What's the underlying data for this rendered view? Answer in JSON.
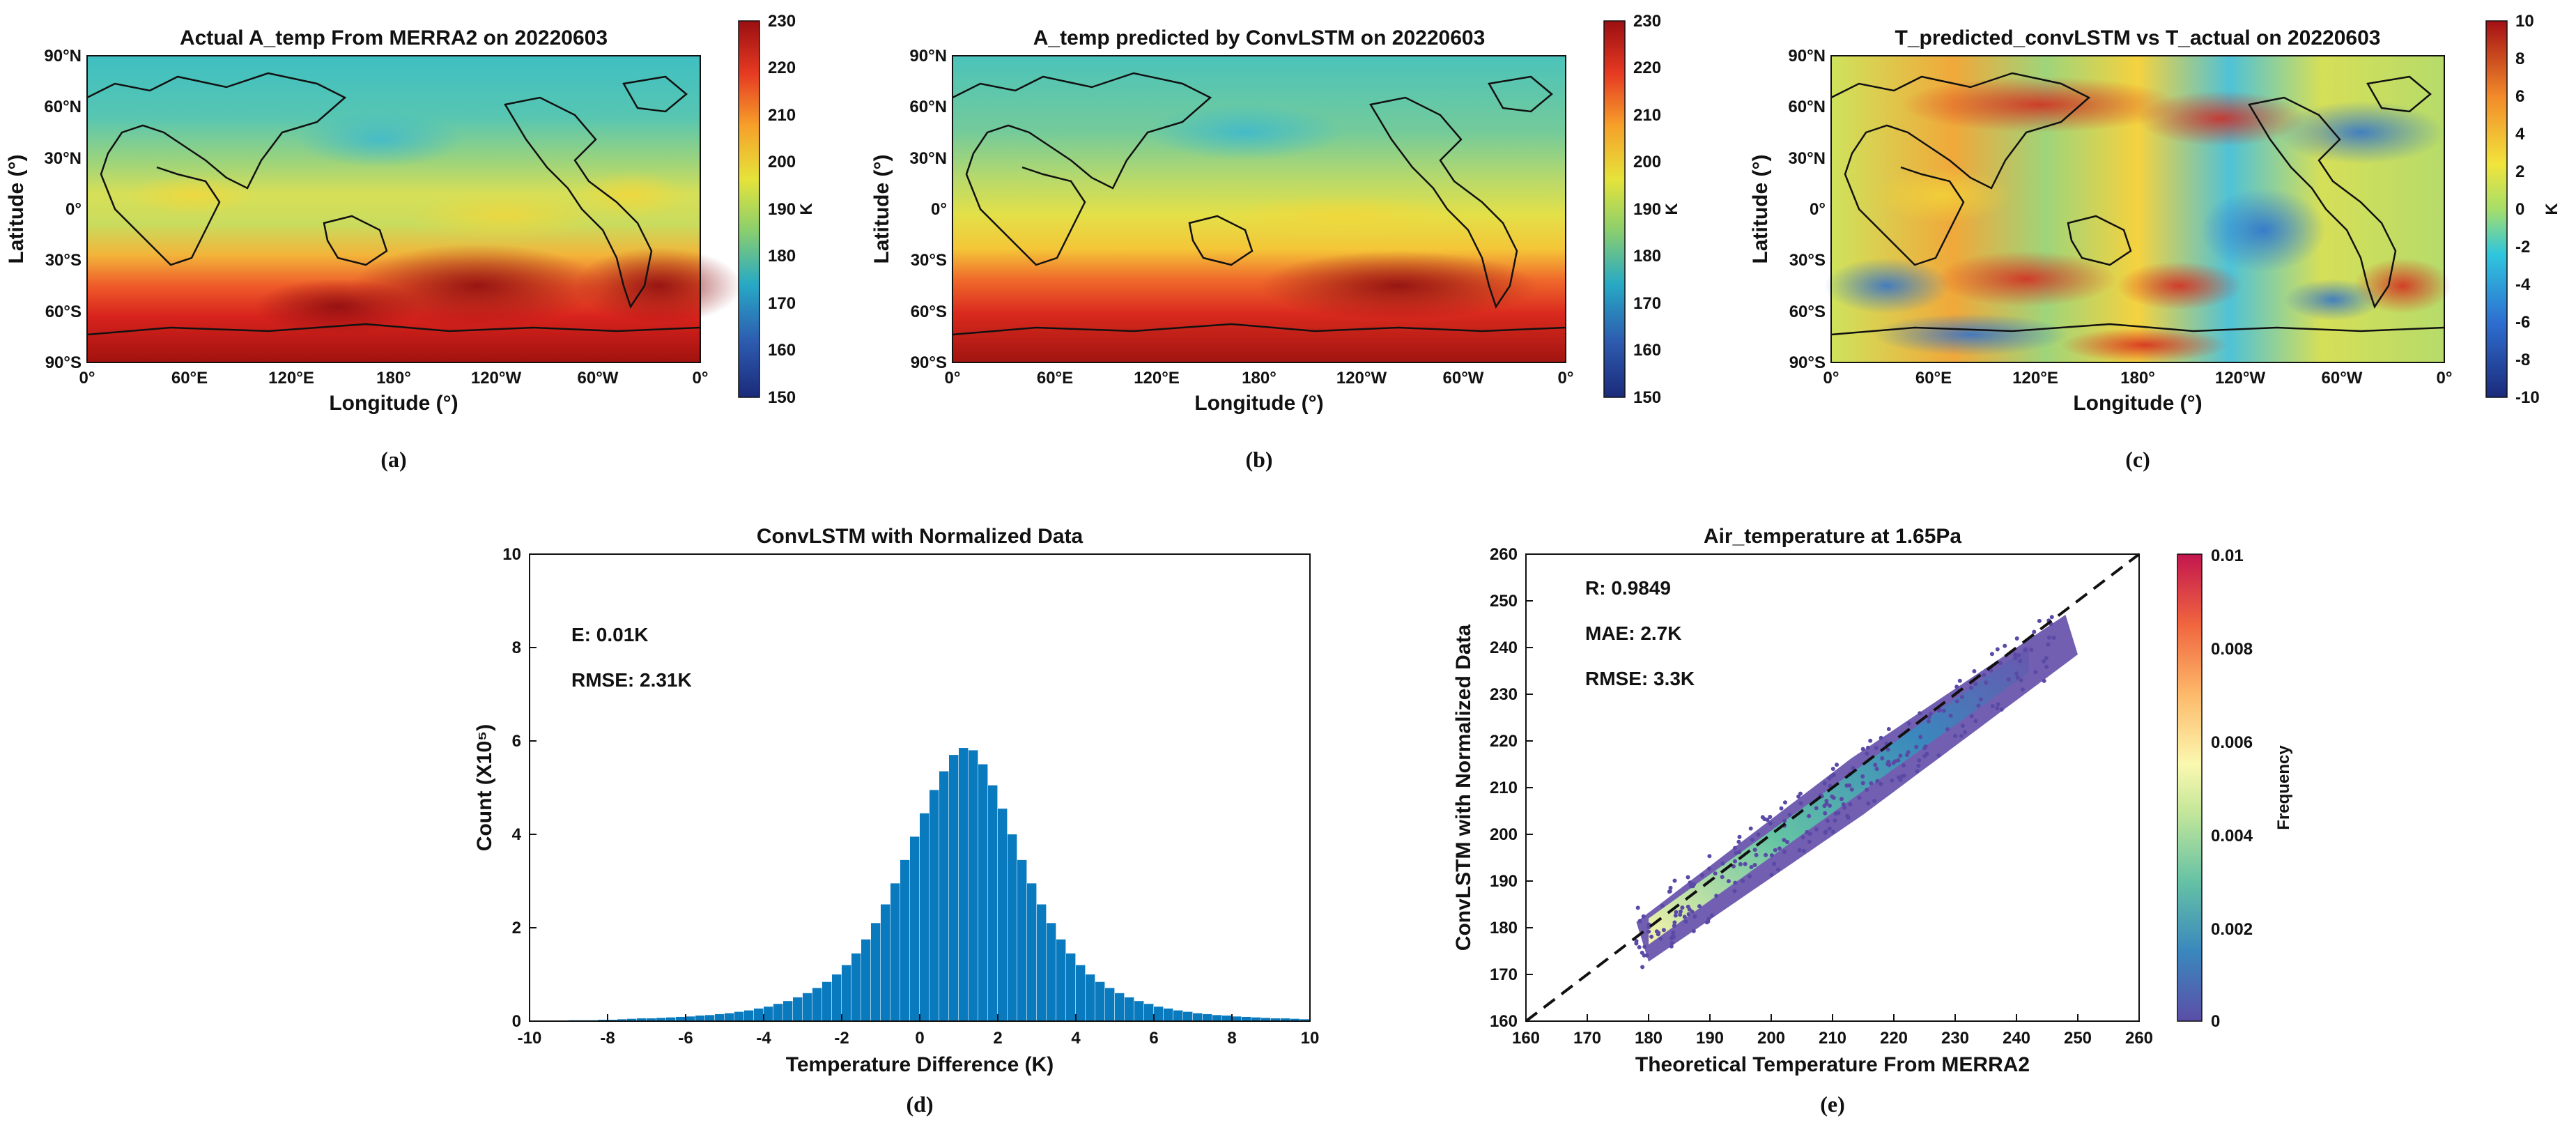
{
  "maps": [
    {
      "title": "Actual A_temp From MERRA2 on 20220603",
      "xlabel": "Longitude (°)",
      "ylabel": "Latitude (°)",
      "xticks": [
        "0°",
        "60°E",
        "120°E",
        "180°",
        "120°W",
        "60°W",
        "0°"
      ],
      "yticks": [
        "90°N",
        "60°N",
        "30°N",
        "0°",
        "30°S",
        "60°S",
        "90°S"
      ],
      "colorbar": {
        "min": 150,
        "max": 230,
        "ticks": [
          "230",
          "220",
          "210",
          "200",
          "190",
          "180",
          "170",
          "160",
          "150"
        ],
        "label": "K"
      },
      "caption": "(a)"
    },
    {
      "title": "A_temp predicted by ConvLSTM  on 20220603",
      "xlabel": "Longitude (°)",
      "ylabel": "Latitude (°)",
      "xticks": [
        "0°",
        "60°E",
        "120°E",
        "180°",
        "120°W",
        "60°W",
        "0°"
      ],
      "yticks": [
        "90°N",
        "60°N",
        "30°N",
        "0°",
        "30°S",
        "60°S",
        "90°S"
      ],
      "colorbar": {
        "min": 150,
        "max": 230,
        "ticks": [
          "230",
          "220",
          "210",
          "200",
          "190",
          "180",
          "170",
          "160",
          "150"
        ],
        "label": "K"
      },
      "caption": "(b)"
    },
    {
      "title": "T_predicted_convLSTM vs T_actual on 20220603",
      "xlabel": "Longitude (°)",
      "ylabel": "Latitude (°)",
      "xticks": [
        "0°",
        "60°E",
        "120°E",
        "180°",
        "120°W",
        "60°W",
        "0°"
      ],
      "yticks": [
        "90°N",
        "60°N",
        "30°N",
        "0°",
        "30°S",
        "60°S",
        "90°S"
      ],
      "colorbar": {
        "min": -10,
        "max": 10,
        "ticks": [
          "10",
          "8",
          "6",
          "4",
          "2",
          "0",
          "-2",
          "-4",
          "-6",
          "-8",
          "-10"
        ],
        "label": "K"
      },
      "caption": "(c)"
    }
  ],
  "chart_data": [
    {
      "type": "bar",
      "title": "ConvLSTM with Normalized Data",
      "xlabel": "Temperature Difference (K)",
      "ylabel": "Count (X10⁵)",
      "xlim": [
        -10,
        10
      ],
      "ylim": [
        0,
        10
      ],
      "xticks": [
        "-10",
        "-8",
        "-6",
        "-4",
        "-2",
        "0",
        "2",
        "4",
        "6",
        "8",
        "10"
      ],
      "yticks": [
        "0",
        "2",
        "4",
        "6",
        "8",
        "10"
      ],
      "bin_width": 0.25,
      "bin_start": -10,
      "values": [
        0.0,
        0.01,
        0.01,
        0.01,
        0.02,
        0.02,
        0.02,
        0.03,
        0.03,
        0.04,
        0.05,
        0.06,
        0.06,
        0.07,
        0.08,
        0.09,
        0.1,
        0.12,
        0.13,
        0.15,
        0.17,
        0.2,
        0.23,
        0.27,
        0.31,
        0.37,
        0.43,
        0.51,
        0.6,
        0.71,
        0.84,
        1.0,
        1.2,
        1.45,
        1.75,
        2.1,
        2.5,
        2.95,
        3.45,
        3.95,
        4.45,
        4.95,
        5.35,
        5.7,
        5.85,
        5.8,
        5.5,
        5.05,
        4.55,
        4.0,
        3.45,
        2.95,
        2.5,
        2.1,
        1.75,
        1.45,
        1.2,
        1.0,
        0.84,
        0.71,
        0.6,
        0.51,
        0.43,
        0.37,
        0.31,
        0.27,
        0.23,
        0.2,
        0.17,
        0.15,
        0.13,
        0.12,
        0.1,
        0.09,
        0.08,
        0.07,
        0.06,
        0.06,
        0.05,
        0.04
      ],
      "annotations": [
        "E: 0.01K",
        "RMSE: 2.31K"
      ],
      "color": "#0a7abf",
      "caption": "(d)"
    },
    {
      "type": "scatter",
      "title": "Air_temperature at 1.65Pa",
      "xlabel": "Theoretical Temperature From MERRA2",
      "ylabel": "ConvLSTM with Normalized Data",
      "xlim": [
        160,
        260
      ],
      "ylim": [
        160,
        260
      ],
      "xticks": [
        "160",
        "170",
        "180",
        "190",
        "200",
        "210",
        "220",
        "230",
        "240",
        "250",
        "260"
      ],
      "yticks": [
        "160",
        "170",
        "180",
        "190",
        "200",
        "210",
        "220",
        "230",
        "240",
        "250",
        "260"
      ],
      "point_cloud_range": {
        "x": [
          178,
          248
        ],
        "y": [
          176,
          241
        ]
      },
      "reference_line": "y = x",
      "annotations": [
        "R: 0.9849",
        "MAE: 2.7K",
        "RMSE: 3.3K"
      ],
      "colorbar": {
        "label": "Frequency",
        "min": 0,
        "max": 0.01,
        "ticks": [
          "0.01",
          "0.008",
          "0.006",
          "0.004",
          "0.002",
          "0"
        ]
      },
      "caption": "(e)"
    }
  ]
}
